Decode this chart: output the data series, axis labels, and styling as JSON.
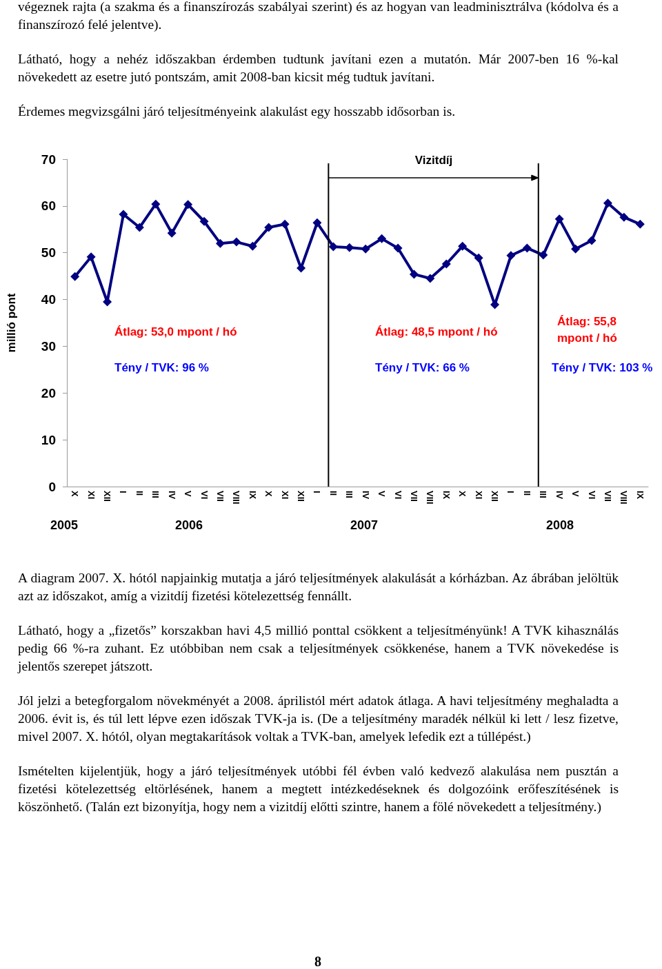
{
  "chart_data": {
    "type": "line",
    "ylabel": "millió pont",
    "color": "#000080",
    "marker": "diamond",
    "grid": false,
    "categories": [
      "X",
      "XI",
      "XII",
      "I",
      "II",
      "III",
      "IV",
      "V",
      "VI",
      "VII",
      "VIII",
      "IX",
      "X",
      "XI",
      "XII",
      "I",
      "II",
      "III",
      "IV",
      "V",
      "VI",
      "VII",
      "VIII",
      "IX",
      "X",
      "XI",
      "XII",
      "I",
      "II",
      "III",
      "IV",
      "V",
      "VI",
      "VII",
      "VIII",
      "IX"
    ],
    "values": [
      44.9,
      49.1,
      39.5,
      58.2,
      55.4,
      60.4,
      54.2,
      60.3,
      56.7,
      52.0,
      52.3,
      51.4,
      55.4,
      56.1,
      46.7,
      56.4,
      51.3,
      51.1,
      50.8,
      53.0,
      51.0,
      45.4,
      44.5,
      47.6,
      51.4,
      48.9,
      38.9,
      49.4,
      51.0,
      49.5,
      57.2,
      50.8,
      52.6,
      60.6,
      57.6,
      56.1
    ],
    "ylim": [
      0,
      70
    ],
    "yticks": [
      0,
      10,
      20,
      30,
      40,
      50,
      60,
      70
    ],
    "annotations": [
      "végeznek rajta (a szakma és a finanszírozás szabályai szerint) és az hogyan van leadminisztrálva (kódolva és a finanszírozó felé jelentve).",
      "Látható, hogy a nehéz időszakban érdemben tudtunk javítani ezen a mutatón. Már 2007-ben 16 %-kal növekedett az esetre jutó pontszám, amit 2008-ban kicsit még tudtuk javítani.",
      "Érdemes megvizsgálni járó teljesítményeink alakulást egy hosszabb idősorban is.",
      "Vizitdíj",
      "Átlag: 53,0 mpont / hó",
      "Tény / TVK: 96 %",
      "Átlag: 48,5 mpont / hó",
      "Tény / TVK: 66 %",
      "Átlag: 55,8 mpont / hó",
      "Tény / TVK: 103 %",
      "2005",
      "2006",
      "2007",
      "2008",
      "A diagram 2007. X. hótól napjainkig mutatja a járó teljesítmények alakulását a kórházban. Az ábrában jelöltük azt az időszakot, amíg a vizitdíj fizetési kötelezettség fennállt.",
      "Látható, hogy a „fizetős” korszakban havi 4,5 millió ponttal csökkent a teljesítményünk! A TVK kihasználás pedig 66 %-ra zuhant. Ez utóbbiban nem csak a teljesítmények csökkenése, hanem a TVK növekedése is jelentős szerepet játszott.",
      "Jól jelzi a betegforgalom növekményét a 2008. áprilistól mért adatok átlaga. A havi teljesítmény meghaladta a 2006. évit is, és túl lett lépve ezen időszak TVK-ja is. (De a teljesítmény maradék nélkül ki lett / lesz fizetve, mivel 2007. X. hótól, olyan megtakarítások voltak a TVK-ban, amelyek lefedik ezt a túllépést.)",
      "Ismételten kijelentjük, hogy a járó teljesítmények utóbbi fél évben való kedvező alakulása nem pusztán a fizetési kötelezettség eltörlésének, hanem a megtett intézkedéseknek és dolgozóink erőfeszítésének is köszönhető. (Talán ezt bizonyítja, hogy nem a vizitdíj előtti szintre, hanem a fölé növekedett a teljesítmény.)",
      "8"
    ]
  }
}
